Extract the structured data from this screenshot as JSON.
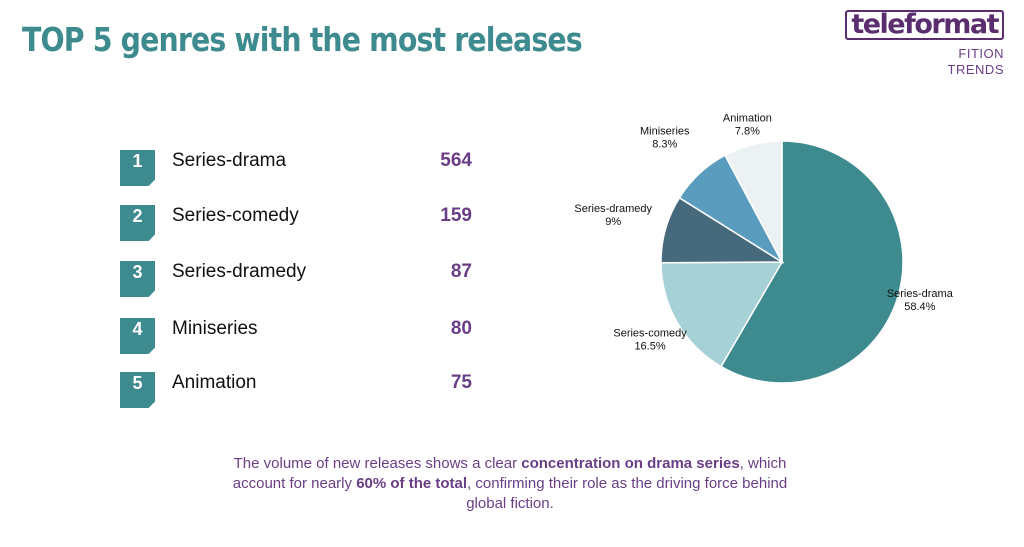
{
  "title": "TOP 5 genres with the most releases",
  "brand": {
    "logo": "teleformat",
    "line1": "FITION",
    "line2": "TRENDS"
  },
  "ranking": [
    {
      "rank": "1",
      "genre": "Series-drama",
      "count": "564"
    },
    {
      "rank": "2",
      "genre": "Series-comedy",
      "count": "159"
    },
    {
      "rank": "3",
      "genre": "Series-dramedy",
      "count": "87"
    },
    {
      "rank": "4",
      "genre": "Miniseries",
      "count": "80"
    },
    {
      "rank": "5",
      "genre": "Animation",
      "count": "75"
    }
  ],
  "chart_data": {
    "type": "pie",
    "title": "",
    "slices": [
      {
        "label": "Series-drama",
        "value": 58.4,
        "display": "58.4%",
        "color": "#3d8a8f"
      },
      {
        "label": "Series-comedy",
        "value": 16.5,
        "display": "16.5%",
        "color": "#a6d1d6"
      },
      {
        "label": "Series-dramedy",
        "value": 9,
        "display": "9%",
        "color": "#466a7b"
      },
      {
        "label": "Miniseries",
        "value": 8.3,
        "display": "8.3%",
        "color": "#5a9cbd"
      },
      {
        "label": "Animation",
        "value": 7.8,
        "display": "7.8%",
        "color": "#ecf2f3"
      }
    ],
    "start": "top",
    "direction": "clockwise"
  },
  "caption": {
    "p1": "The volume of new releases shows a clear ",
    "b1": "concentration on drama series",
    "p2": ", which account for nearly ",
    "b2": "60% of the total",
    "p3": ", confirming their role as the driving force behind global fiction."
  }
}
